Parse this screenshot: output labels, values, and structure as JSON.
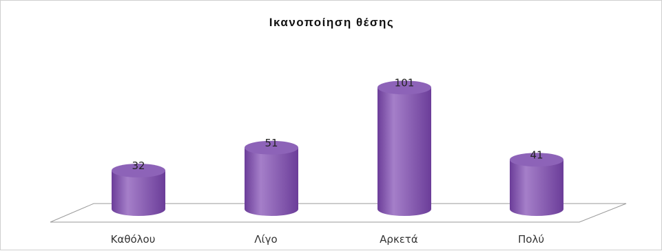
{
  "chart_data": {
    "type": "bar",
    "title": "Ικανοποίηση θέσης",
    "categories": [
      "Καθόλου",
      "Λίγο",
      "Αρκετά",
      "Πολύ"
    ],
    "values": [
      32,
      51,
      101,
      41
    ],
    "xlabel": "",
    "ylabel": "",
    "ylim": [
      0,
      110
    ],
    "grid": false,
    "legend": "none",
    "bar_style": "3d-cylinder",
    "colors": {
      "bar_side": "#6b3d99",
      "bar_highlight": "#a57fc9",
      "bar_top": "#8d63b8",
      "floor_line": "#9a9a9a"
    }
  }
}
